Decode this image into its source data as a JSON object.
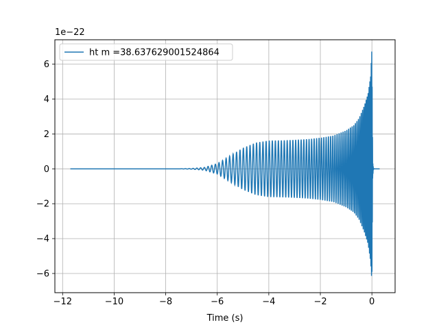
{
  "chart_data": {
    "type": "line",
    "title": "",
    "xlabel": "Time (s)",
    "ylabel": "",
    "y_offset_label": "1e−22",
    "xlim": [
      -12.3,
      0.9
    ],
    "ylim": [
      -7.1,
      7.4
    ],
    "x_ticks": [
      -12,
      -10,
      -8,
      -6,
      -4,
      -2,
      0
    ],
    "x_tick_labels": [
      "−12",
      "−10",
      "−8",
      "−6",
      "−4",
      "−2",
      "0"
    ],
    "y_ticks": [
      -6,
      -4,
      -2,
      0,
      2,
      4,
      6
    ],
    "y_tick_labels": [
      "−6",
      "−4",
      "−2",
      "0",
      "2",
      "4",
      "6"
    ],
    "grid": true,
    "legend_position": "top-left",
    "series": [
      {
        "name": "ht m =38.637629001524864",
        "color": "#1f77b4",
        "t_start": -11.7,
        "t_merger": 0.0,
        "t_end": 0.3,
        "envelope": {
          "t": [
            -11.7,
            -7.5,
            -7.0,
            -6.5,
            -6.0,
            -5.5,
            -5.0,
            -4.5,
            -4.0,
            -3.5,
            -3.0,
            -2.5,
            -2.0,
            -1.5,
            -1.0,
            -0.7,
            -0.5,
            -0.3,
            -0.15,
            -0.05,
            0.0,
            0.03,
            0.06,
            0.1,
            0.3
          ],
          "upper": [
            0.0,
            0.0,
            0.02,
            0.08,
            0.3,
            0.75,
            1.2,
            1.5,
            1.62,
            1.63,
            1.66,
            1.7,
            1.78,
            1.9,
            2.2,
            2.5,
            2.9,
            3.6,
            4.3,
            5.3,
            6.9,
            0.4,
            0.02,
            0.0,
            0.0
          ],
          "lower": [
            0.0,
            0.0,
            -0.02,
            -0.08,
            -0.3,
            -0.75,
            -1.2,
            -1.5,
            -1.62,
            -1.63,
            -1.66,
            -1.7,
            -1.78,
            -1.9,
            -2.2,
            -2.5,
            -2.9,
            -3.6,
            -4.3,
            -5.3,
            -6.5,
            -0.4,
            -0.02,
            0.0,
            0.0
          ]
        }
      }
    ]
  }
}
